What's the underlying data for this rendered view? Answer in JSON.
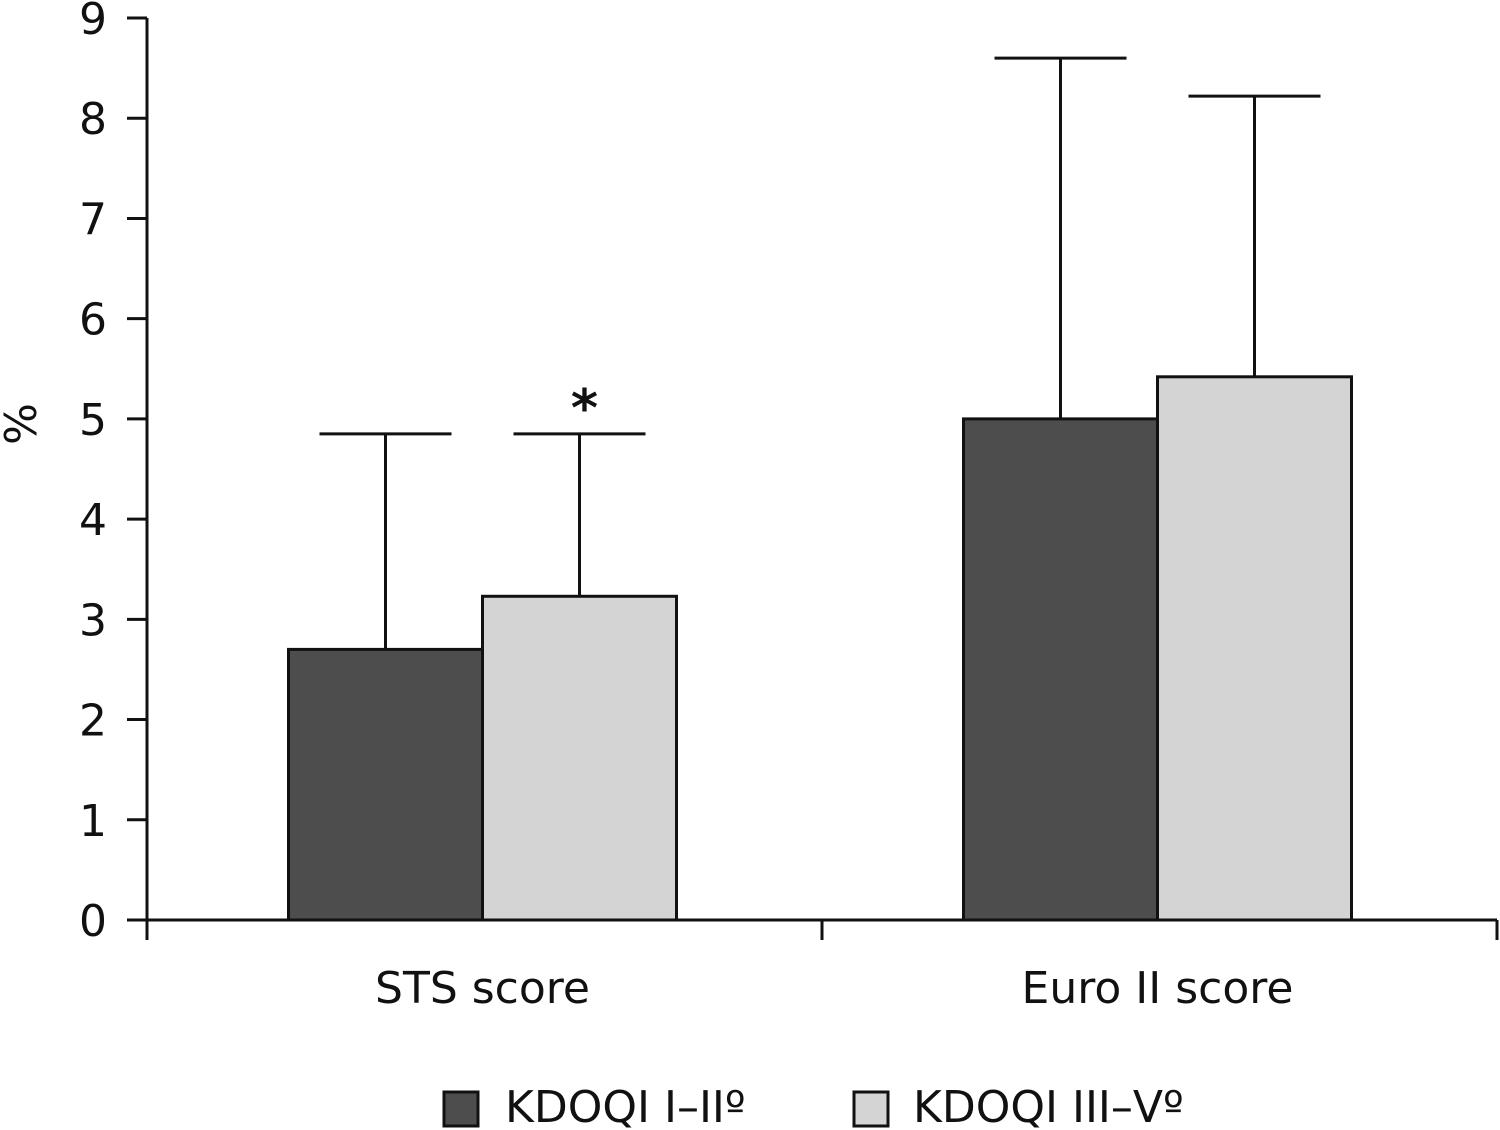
{
  "chart_data": {
    "type": "bar",
    "categories": [
      "STS score",
      "Euro II score"
    ],
    "series": [
      {
        "name": "KDOQI I–IIº",
        "values": [
          2.7,
          5.0
        ],
        "errors": [
          2.15,
          3.6
        ],
        "color": "#4d4d4d"
      },
      {
        "name": "KDOQI III–Vº",
        "values": [
          3.23,
          5.42
        ],
        "errors": [
          1.62,
          2.8
        ],
        "color": "#d4d4d4"
      }
    ],
    "ylabel": "%",
    "ylim": [
      0,
      9
    ],
    "yticks": [
      "0",
      "1",
      "2",
      "3",
      "4",
      "5",
      "6",
      "7",
      "8",
      "9"
    ],
    "annotations": [
      {
        "text": "*",
        "category": 0,
        "series": 1
      }
    ],
    "legend_position": "bottom",
    "grid": false
  }
}
